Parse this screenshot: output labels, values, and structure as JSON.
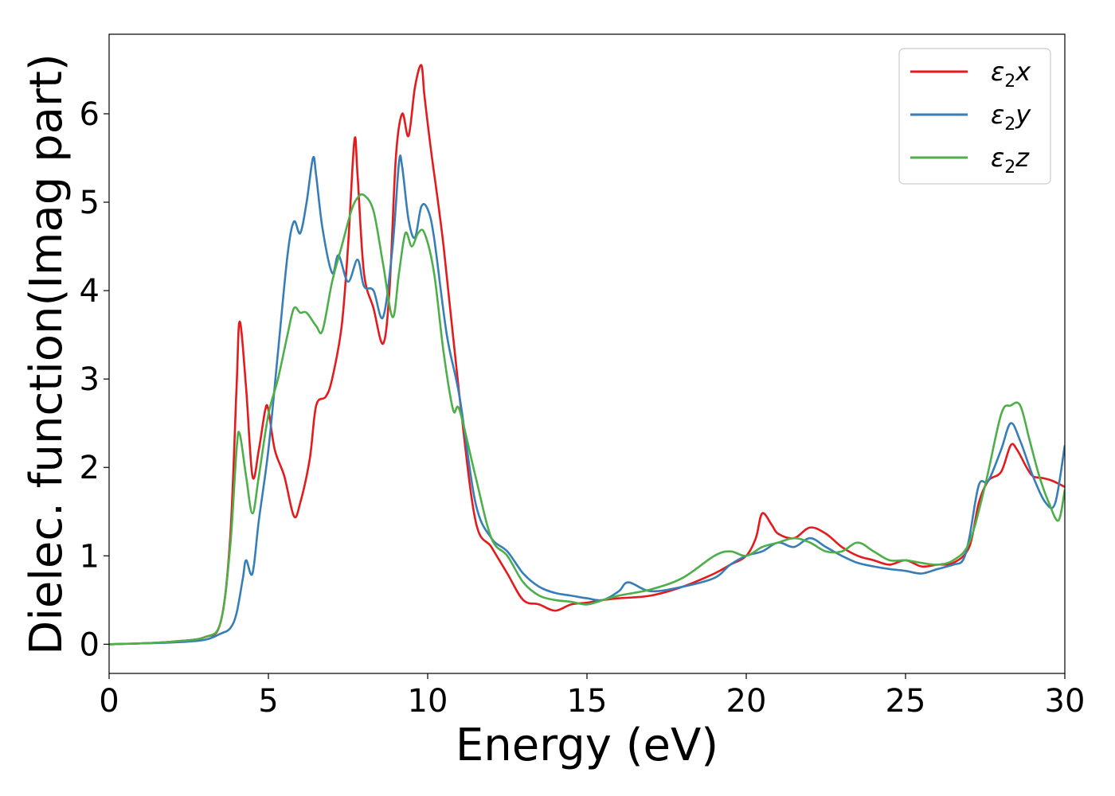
{
  "chart_data": {
    "type": "line",
    "xlabel": "Energy (eV)",
    "ylabel": "Dielec. function(Imag part)",
    "xlim": [
      0,
      30
    ],
    "ylim": [
      -0.33,
      6.9
    ],
    "xticks": [
      0,
      5,
      10,
      15,
      20,
      25,
      30
    ],
    "yticks": [
      0,
      1,
      2,
      3,
      4,
      5,
      6
    ],
    "xtick_labels": [
      "0",
      "5",
      "10",
      "15",
      "20",
      "25",
      "30"
    ],
    "ytick_labels": [
      "0",
      "1",
      "2",
      "3",
      "4",
      "5",
      "6"
    ],
    "grid": false,
    "legend_position": "top-right",
    "series": [
      {
        "name_base": "ε",
        "name_sub": "2",
        "name_suffix": "x",
        "color": "#e41a1c",
        "x": [
          0,
          1,
          2,
          3,
          3.5,
          3.8,
          4.0,
          4.1,
          4.3,
          4.5,
          4.7,
          4.9,
          5.0,
          5.2,
          5.5,
          5.8,
          6.0,
          6.3,
          6.5,
          6.8,
          7.0,
          7.3,
          7.5,
          7.7,
          7.8,
          8.0,
          8.3,
          8.6,
          8.8,
          9.0,
          9.2,
          9.4,
          9.6,
          9.8,
          9.9,
          10.1,
          10.5,
          11.0,
          11.5,
          12.0,
          12.5,
          13.0,
          13.5,
          14.0,
          14.5,
          15.0,
          15.5,
          16.0,
          17.0,
          18.0,
          19.0,
          19.5,
          20.0,
          20.3,
          20.5,
          20.8,
          21.0,
          21.5,
          22.0,
          22.5,
          23.0,
          23.5,
          24.0,
          24.5,
          25.0,
          25.5,
          26.0,
          26.5,
          27.0,
          27.3,
          27.6,
          28.0,
          28.3,
          28.5,
          28.8,
          29.0,
          29.3,
          29.6,
          30.0
        ],
        "y": [
          0.0,
          0.01,
          0.03,
          0.08,
          0.25,
          1.2,
          2.9,
          3.65,
          2.9,
          1.9,
          2.2,
          2.65,
          2.65,
          2.2,
          1.9,
          1.45,
          1.6,
          2.1,
          2.7,
          2.8,
          3.0,
          3.6,
          4.5,
          5.7,
          5.3,
          4.2,
          3.8,
          3.4,
          4.0,
          5.5,
          6.0,
          5.75,
          6.3,
          6.55,
          6.2,
          5.6,
          4.5,
          2.8,
          1.4,
          1.1,
          0.8,
          0.5,
          0.45,
          0.38,
          0.45,
          0.47,
          0.5,
          0.52,
          0.55,
          0.65,
          0.8,
          0.9,
          1.0,
          1.2,
          1.48,
          1.35,
          1.25,
          1.2,
          1.32,
          1.25,
          1.1,
          1.0,
          0.95,
          0.9,
          0.95,
          0.88,
          0.9,
          0.92,
          1.1,
          1.6,
          1.85,
          1.95,
          2.25,
          2.2,
          2.0,
          1.9,
          1.88,
          1.85,
          1.78
        ]
      },
      {
        "name_base": "ε",
        "name_sub": "2",
        "name_suffix": "y",
        "color": "#377eb8",
        "x": [
          0,
          1,
          2,
          3,
          3.5,
          3.8,
          4.0,
          4.2,
          4.3,
          4.5,
          4.7,
          5.0,
          5.3,
          5.6,
          5.8,
          6.0,
          6.2,
          6.4,
          6.5,
          6.7,
          7.0,
          7.2,
          7.5,
          7.8,
          8.0,
          8.3,
          8.6,
          8.9,
          9.1,
          9.2,
          9.4,
          9.6,
          9.8,
          10.0,
          10.2,
          10.6,
          11.0,
          11.5,
          12.0,
          12.5,
          13.0,
          13.5,
          14.0,
          14.5,
          15.0,
          15.5,
          16.0,
          16.3,
          17.0,
          18.0,
          19.0,
          19.5,
          20.0,
          20.5,
          21.0,
          21.5,
          22.0,
          22.5,
          23.0,
          23.5,
          24.0,
          24.5,
          25.0,
          25.5,
          26.0,
          26.5,
          26.8,
          27.0,
          27.3,
          27.6,
          28.0,
          28.3,
          28.6,
          29.0,
          29.4,
          29.7,
          30.0
        ],
        "y": [
          0.0,
          0.01,
          0.02,
          0.05,
          0.12,
          0.18,
          0.35,
          0.75,
          0.95,
          0.8,
          1.4,
          2.2,
          3.3,
          4.4,
          4.78,
          4.65,
          5.0,
          5.5,
          5.3,
          4.7,
          4.2,
          4.4,
          4.1,
          4.35,
          4.05,
          4.0,
          3.7,
          4.5,
          5.45,
          5.4,
          4.8,
          4.6,
          4.95,
          4.92,
          4.6,
          3.5,
          2.8,
          1.6,
          1.2,
          1.05,
          0.8,
          0.65,
          0.58,
          0.55,
          0.52,
          0.5,
          0.6,
          0.7,
          0.6,
          0.65,
          0.75,
          0.9,
          1.0,
          1.05,
          1.15,
          1.1,
          1.2,
          1.1,
          1.0,
          0.92,
          0.88,
          0.85,
          0.83,
          0.8,
          0.85,
          0.9,
          0.95,
          1.2,
          1.8,
          1.85,
          2.2,
          2.5,
          2.3,
          1.9,
          1.6,
          1.6,
          2.25
        ]
      },
      {
        "name_base": "ε",
        "name_sub": "2",
        "name_suffix": "z",
        "color": "#4daf4a",
        "x": [
          0,
          1,
          2,
          3,
          3.5,
          3.8,
          4.0,
          4.1,
          4.3,
          4.5,
          4.7,
          5.0,
          5.3,
          5.6,
          5.8,
          6.0,
          6.2,
          6.5,
          6.7,
          7.0,
          7.3,
          7.6,
          7.8,
          8.0,
          8.3,
          8.6,
          8.9,
          9.1,
          9.3,
          9.5,
          9.7,
          9.9,
          10.2,
          10.5,
          10.8,
          11.0,
          11.5,
          12.0,
          12.5,
          13.0,
          13.5,
          14.0,
          14.5,
          15.0,
          15.5,
          16.0,
          17.0,
          18.0,
          19.0,
          19.5,
          20.0,
          20.5,
          21.0,
          21.5,
          22.0,
          22.5,
          23.0,
          23.5,
          24.0,
          24.5,
          25.0,
          25.5,
          26.0,
          26.5,
          27.0,
          27.5,
          28.0,
          28.3,
          28.6,
          28.9,
          29.2,
          29.5,
          29.8,
          30.0
        ],
        "y": [
          0.0,
          0.01,
          0.03,
          0.08,
          0.25,
          1.1,
          2.2,
          2.38,
          1.9,
          1.48,
          1.9,
          2.6,
          3.0,
          3.5,
          3.8,
          3.75,
          3.75,
          3.6,
          3.55,
          4.1,
          4.5,
          4.9,
          5.05,
          5.08,
          4.9,
          4.3,
          3.7,
          4.2,
          4.65,
          4.5,
          4.65,
          4.65,
          4.2,
          3.3,
          2.65,
          2.65,
          1.9,
          1.2,
          1.0,
          0.7,
          0.55,
          0.5,
          0.48,
          0.45,
          0.5,
          0.55,
          0.62,
          0.75,
          1.0,
          1.05,
          1.0,
          1.1,
          1.15,
          1.2,
          1.15,
          1.05,
          1.05,
          1.15,
          1.05,
          0.95,
          0.95,
          0.92,
          0.9,
          0.95,
          1.15,
          1.8,
          2.6,
          2.7,
          2.7,
          2.3,
          1.9,
          1.6,
          1.4,
          1.75
        ]
      }
    ]
  }
}
